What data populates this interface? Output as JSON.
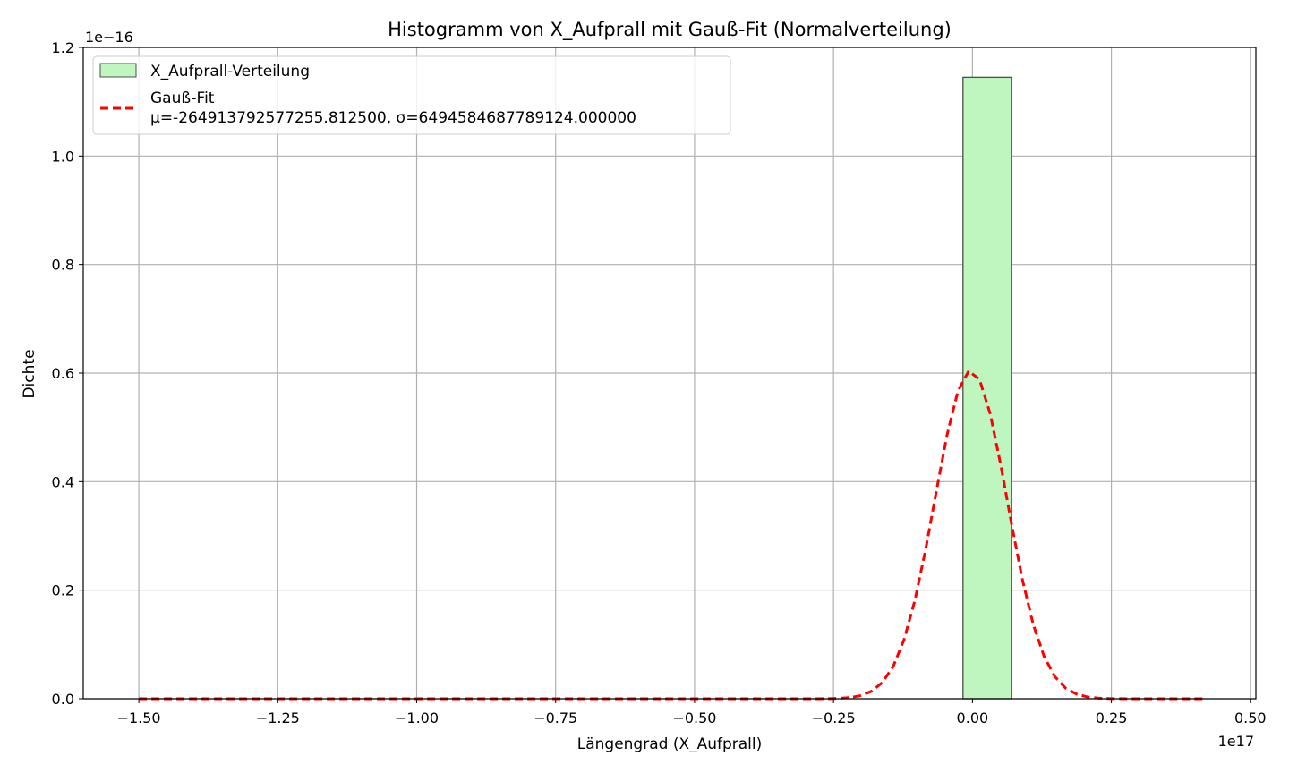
{
  "chart_data": {
    "type": "histogram",
    "title": "Histogramm von X_Aufprall mit Gauß-Fit (Normalverteilung)",
    "xlabel": "Längengrad (X_Aufprall)",
    "ylabel": "Dichte",
    "x_offset_label": "1e17",
    "y_offset_label": "1e−16",
    "x_scale": 1e+17,
    "y_scale": 1e-16,
    "xlim": [
      -1.6,
      0.51
    ],
    "ylim": [
      0.0,
      1.2
    ],
    "x_ticks": [
      -1.5,
      -1.25,
      -1.0,
      -0.75,
      -0.5,
      -0.25,
      0.0,
      0.25,
      0.5
    ],
    "x_tick_labels": [
      "−1.50",
      "−1.25",
      "−1.00",
      "−0.75",
      "−0.50",
      "−0.25",
      "0.00",
      "0.25",
      "0.50"
    ],
    "y_ticks": [
      0.0,
      0.2,
      0.4,
      0.6,
      0.8,
      1.0,
      1.2
    ],
    "y_tick_labels": [
      "0.0",
      "0.2",
      "0.4",
      "0.6",
      "0.8",
      "1.0",
      "1.2"
    ],
    "grid": true,
    "legend_position": "top-left",
    "bars": [
      {
        "x0": -0.017,
        "x1": 0.07,
        "height": 1.145
      }
    ],
    "gaussian_fit": {
      "mu": -0.00265,
      "sigma": 0.065,
      "peak": 0.605,
      "x_range": [
        -1.5,
        0.42
      ]
    },
    "series": [
      {
        "name": "X_Aufprall-Verteilung",
        "kind": "bar",
        "color": "#90ee90"
      },
      {
        "name": "Gauß-Fit",
        "name_line2": "μ=-264913792577255.812500, σ=6494584687789124.000000",
        "kind": "line",
        "color": "#ff0000"
      }
    ]
  },
  "colors": {
    "bar_fill": "#bff5bf",
    "bar_edge": "#4d4d4d",
    "fit_line": "#ff0000",
    "grid": "#b0b0b0"
  }
}
